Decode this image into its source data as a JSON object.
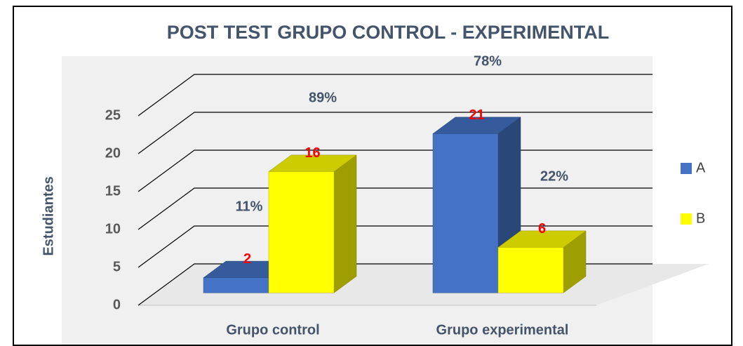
{
  "chart_data": {
    "type": "bar3d",
    "title": "POST TEST GRUPO CONTROL -  EXPERIMENTAL",
    "y_label": "Estudiantes",
    "categories": [
      "Grupo control",
      "Grupo experimental"
    ],
    "series": [
      {
        "name": "A",
        "color": "#4472c4",
        "values": [
          2,
          21
        ]
      },
      {
        "name": "B",
        "color": "#ffff00",
        "values": [
          16,
          6
        ]
      }
    ],
    "annotations": [
      "89%",
      "11%",
      "78%",
      "22%"
    ],
    "ylim": [
      0,
      25
    ],
    "yticks": [
      0,
      5,
      10,
      15,
      20,
      25
    ],
    "grid": true,
    "legend": "right"
  }
}
